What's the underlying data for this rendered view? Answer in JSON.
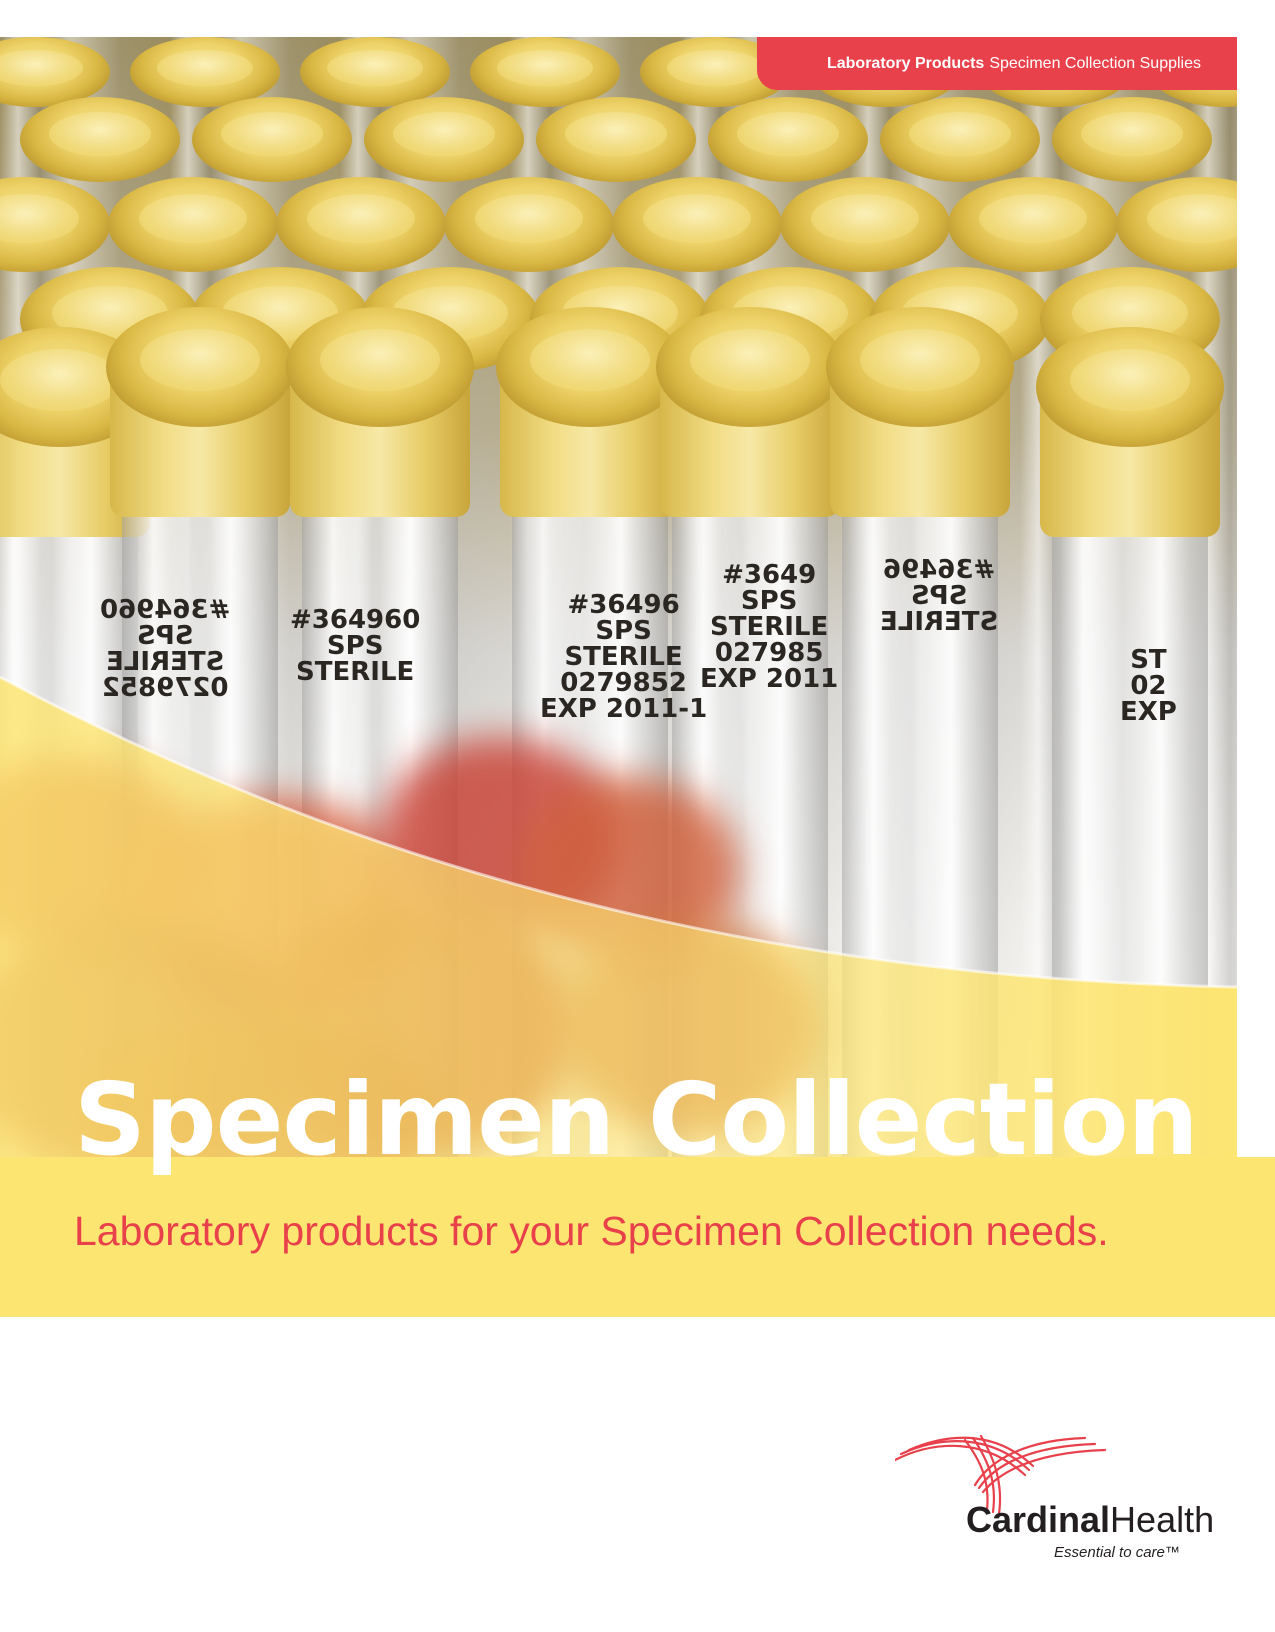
{
  "header_tag": {
    "bold": "Laboratory Products",
    "regular": "Specimen Collection Supplies"
  },
  "title": "Specimen Collection",
  "subtitle": "Laboratory products for your Specimen Collection needs.",
  "tube_labels": [
    {
      "text": "#364960\nSPS\nSTERILE\n0279852",
      "mirror": true
    },
    {
      "text": "#364960\nSPS\nSTERILE",
      "mirror": false
    },
    {
      "text": "#36496\nSPS\nSTERILE\n0279852\nEXP 2011-1",
      "mirror": false
    },
    {
      "text": "#3649\nSPS\nSTERILE\n027985\nEXP 2011",
      "mirror": false
    },
    {
      "text": "#36496\nSPS\nSTERILE",
      "mirror": true
    },
    {
      "text": "ST\n02\nEXP",
      "mirror": false
    }
  ],
  "brand": {
    "bold": "Cardinal",
    "regular": "Health",
    "tagline": "Essential to care™"
  },
  "colors": {
    "accent_red": "#e8414b",
    "band_yellow": "#fde572",
    "text_dark": "#231f20"
  },
  "icons": {
    "logo": "cardinal-health-swoosh-icon"
  }
}
